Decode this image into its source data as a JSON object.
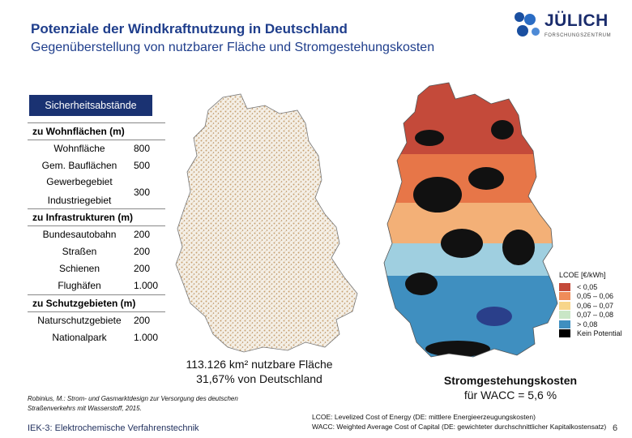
{
  "header": {
    "title": "Potenziale der Windkraftnutzung in Deutschland",
    "subtitle": "Gegenüberstellung von nutzbarer Fläche und Stromgestehungskosten"
  },
  "logo": {
    "name": "JÜLICH",
    "sub": "FORSCHUNGSZENTRUM"
  },
  "table": {
    "header": "Sicherheitsabstände",
    "sections": [
      {
        "title": "zu Wohnflächen (m)",
        "rows": [
          {
            "label": "Wohnfläche",
            "value": "800"
          },
          {
            "label": "Gem. Bauflächen",
            "value": "500"
          },
          {
            "label": "Gewerbegebiet",
            "value": ""
          },
          {
            "label": "Industriegebiet",
            "value": "300"
          }
        ]
      },
      {
        "title": "zu Infrastrukturen (m)",
        "rows": [
          {
            "label": "Bundesautobahn",
            "value": "200"
          },
          {
            "label": "Straßen",
            "value": "200"
          },
          {
            "label": "Schienen",
            "value": "200"
          },
          {
            "label": "Flughäfen",
            "value": "1.000"
          }
        ]
      },
      {
        "title": "zu Schutzgebieten (m)",
        "rows": [
          {
            "label": "Naturschutzgebiete",
            "value": "200"
          },
          {
            "label": "Nationalpark",
            "value": "1.000"
          }
        ]
      }
    ]
  },
  "legend": {
    "title": "LCOE [€/kWh]",
    "items": [
      {
        "label": "< 0,05",
        "color": "#c44a3a"
      },
      {
        "label": "0,05 – 0,06",
        "color": "#ef8c5a"
      },
      {
        "label": "0,06 – 0,07",
        "color": "#f7d58a"
      },
      {
        "label": "0,07 – 0,08",
        "color": "#c9e6c6"
      },
      {
        "label": "> 0,08",
        "color": "#3f8fc0"
      },
      {
        "label": "Kein Potential",
        "color": "#000000"
      }
    ]
  },
  "left_map_caption": {
    "line1": "113.126 km² nutzbare Fläche",
    "line2": "31,67% von Deutschland"
  },
  "right_map_caption": {
    "line1": "Stromgestehungskosten",
    "line2": "für WACC = 5,6 %"
  },
  "reference": {
    "line1": "Robinius, M.: Strom- und Gasmarktdesign zur Versorgung des deutschen",
    "line2": "Straßenverkehrs mit Wasserstoff, 2015."
  },
  "footer": {
    "institute": "IEK-3: Elektrochemische Verfahrenstechnik",
    "page": "6"
  },
  "notes": {
    "lcoe": "LCOE: Levelized Cost of Energy (DE: mittlere Energieerzeugungskosten)",
    "wacc": "WACC: Weighted Average Cost of Capital (DE: gewichteter durchschnittlicher Kapitalkostensatz)"
  }
}
